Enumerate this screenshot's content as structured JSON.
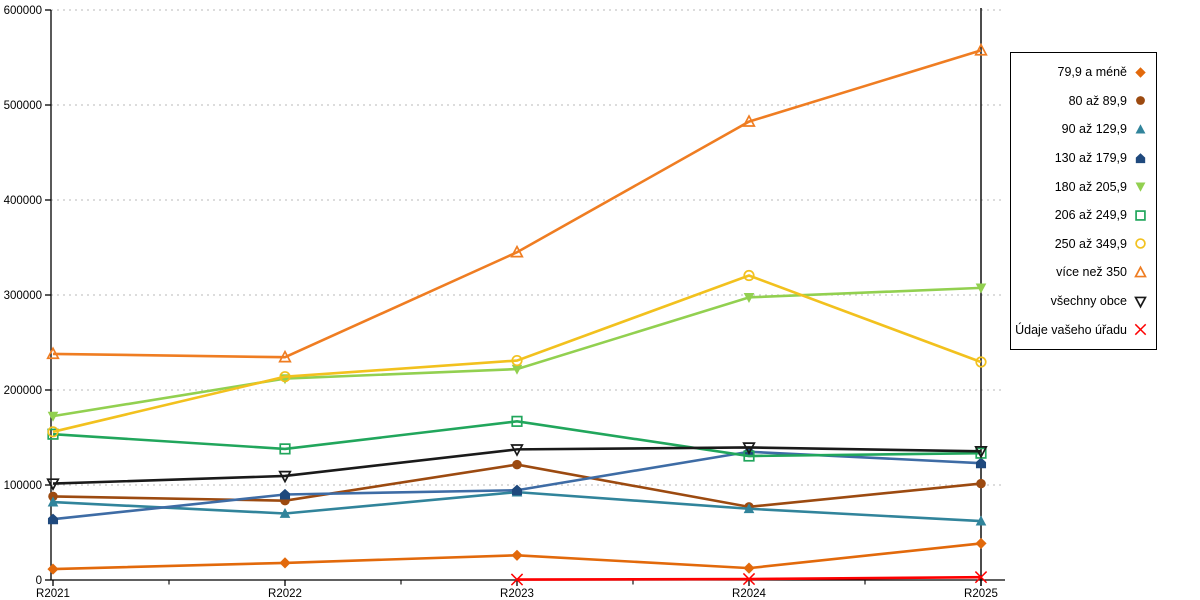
{
  "chart_data": {
    "type": "line",
    "title": "",
    "categories": [
      "R2021",
      "R2022",
      "R2023",
      "R2024",
      "R2025"
    ],
    "series": [
      {
        "name": "79,9 a méně",
        "marker": "diamond",
        "style": "filled",
        "color": "#E2690B",
        "values": [
          11500,
          18000,
          26000,
          12500,
          38500
        ]
      },
      {
        "name": "80 až 89,9",
        "marker": "circle",
        "style": "filled",
        "color": "#9C4A10",
        "values": [
          88000,
          83500,
          121500,
          77000,
          101500
        ]
      },
      {
        "name": "90 až 129,9",
        "marker": "triangle-up",
        "style": "filled",
        "color": "#31849B",
        "values": [
          82000,
          70000,
          92500,
          75000,
          62000
        ]
      },
      {
        "name": "130 až 179,9",
        "marker": "pentagon",
        "style": "filled",
        "color": "#3E6CA5",
        "marker_color": "#1F497D",
        "values": [
          64000,
          90000,
          94500,
          135000,
          123000
        ]
      },
      {
        "name": "180 až 205,9",
        "marker": "triangle-down",
        "style": "filled",
        "color": "#92D050",
        "values": [
          172500,
          212000,
          222000,
          297500,
          307500
        ]
      },
      {
        "name": "206 až 249,9",
        "marker": "square",
        "style": "open",
        "color": "#21A65C",
        "values": [
          153500,
          138000,
          167000,
          130500,
          133500
        ]
      },
      {
        "name": "250 až 349,9",
        "marker": "circle",
        "style": "open",
        "color": "#F2C11E",
        "values": [
          156000,
          214000,
          231000,
          320500,
          229500
        ]
      },
      {
        "name": "více než 350",
        "marker": "triangle-up",
        "style": "open",
        "color": "#EF7D22",
        "values": [
          238000,
          234500,
          345000,
          482500,
          557500
        ]
      },
      {
        "name": "všechny obce",
        "marker": "triangle-down",
        "style": "open",
        "color": "#1A1A1A",
        "values": [
          101500,
          109500,
          137500,
          139500,
          135500
        ]
      },
      {
        "name": "Údaje vašeho úřadu",
        "marker": "x",
        "style": "stroke",
        "color": "#FE0000",
        "values": [
          null,
          null,
          500,
          1000,
          3000
        ]
      }
    ],
    "y_axis": {
      "min": 0,
      "max": 600000,
      "step": 100000,
      "tick_labels": [
        "0",
        "100000",
        "200000",
        "300000",
        "400000",
        "500000",
        "600000"
      ]
    },
    "x_axis": {
      "tick_labels": [
        "R2021",
        "R2022",
        "R2023",
        "R2024",
        "R2025"
      ],
      "minor_ticks_between": true
    },
    "grid": "horizontal-dashed",
    "legend_position": "right",
    "annotations": {
      "vertical_line_at_category": "R2025"
    }
  },
  "colors": {
    "grid": "#C6C6C6",
    "axis": "#000000",
    "background": "#FFFFFF",
    "legend_border": "#000000",
    "vertical_line": "#000000"
  }
}
